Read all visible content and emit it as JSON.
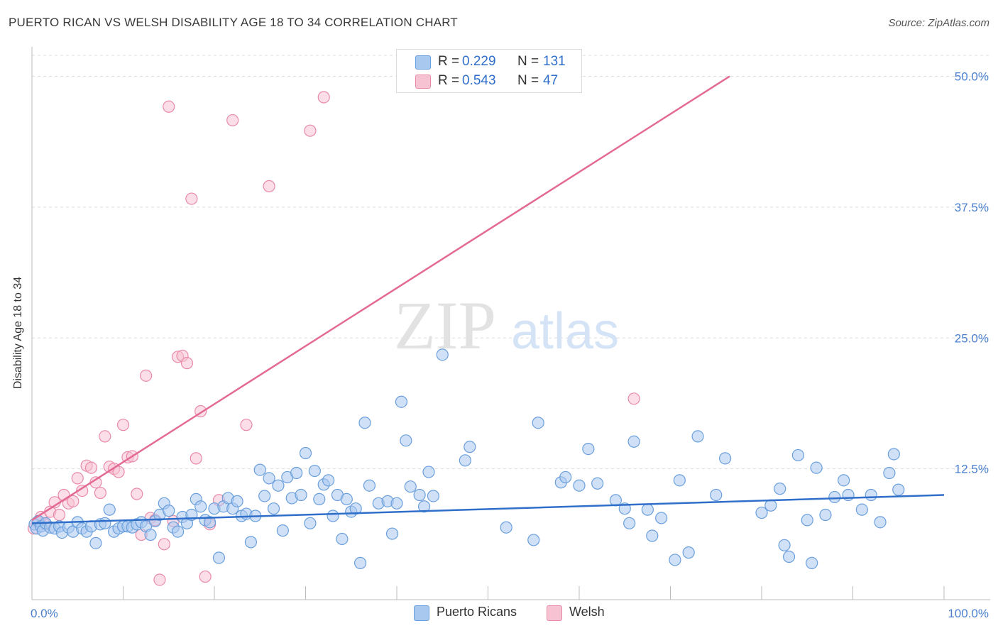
{
  "title": "PUERTO RICAN VS WELSH DISABILITY AGE 18 TO 34 CORRELATION CHART",
  "source": "Source: ZipAtlas.com",
  "watermark": {
    "zip": "ZIP",
    "atlas": "atlas"
  },
  "legend": {
    "rows": [
      {
        "r_label": "R =",
        "r_value": "0.229",
        "n_label": "N =",
        "n_value": "131"
      },
      {
        "r_label": "R =",
        "r_value": "0.543",
        "n_label": "N =",
        "n_value": "47"
      }
    ],
    "bottom": [
      "Puerto Ricans",
      "Welsh"
    ]
  },
  "colors": {
    "blue_fill": "#a9c8f0",
    "blue_stroke": "#6a9fdc",
    "blue_line": "#2f6fca",
    "pink_fill": "#f7c3d3",
    "pink_stroke": "#e98aa8",
    "pink_line": "#e36a94",
    "grid": "#dddddd",
    "axis_text": "#4a7fcf"
  },
  "chart_data": {
    "type": "scatter",
    "xlabel": "",
    "ylabel": "Disability Age 18 to 34",
    "xlim": [
      0,
      100
    ],
    "ylim": [
      0,
      52
    ],
    "x_tick_labels": [
      "0.0%",
      "100.0%"
    ],
    "y_ticks": [
      12.5,
      25.0,
      37.5,
      50.0
    ],
    "y_tick_labels": [
      "12.5%",
      "25.0%",
      "37.5%",
      "50.0%"
    ],
    "grid": true,
    "legend_position": "top-center",
    "series": [
      {
        "name": "Puerto Ricans",
        "color": "#a9c8f0",
        "trend": {
          "x": [
            0,
            100
          ],
          "y": [
            7.3,
            10.0
          ]
        },
        "points": [
          [
            0.3,
            7.2
          ],
          [
            0.5,
            6.8
          ],
          [
            0.7,
            7.5
          ],
          [
            1.0,
            7.0
          ],
          [
            1.2,
            6.6
          ],
          [
            1.5,
            7.3
          ],
          [
            2.0,
            6.9
          ],
          [
            2.5,
            6.8
          ],
          [
            3.0,
            7.0
          ],
          [
            3.3,
            6.4
          ],
          [
            4.0,
            6.9
          ],
          [
            4.5,
            6.5
          ],
          [
            5.0,
            7.4
          ],
          [
            5.5,
            6.8
          ],
          [
            6.0,
            6.5
          ],
          [
            6.5,
            7.0
          ],
          [
            7.0,
            5.4
          ],
          [
            7.5,
            7.2
          ],
          [
            8.0,
            7.3
          ],
          [
            8.5,
            8.6
          ],
          [
            9.0,
            6.5
          ],
          [
            9.5,
            6.8
          ],
          [
            10.0,
            7.0
          ],
          [
            10.5,
            7.0
          ],
          [
            11.0,
            6.9
          ],
          [
            11.5,
            7.2
          ],
          [
            12.0,
            7.4
          ],
          [
            12.5,
            7.0
          ],
          [
            13.0,
            6.2
          ],
          [
            13.5,
            7.5
          ],
          [
            14.0,
            8.1
          ],
          [
            14.5,
            9.2
          ],
          [
            15.0,
            8.5
          ],
          [
            15.5,
            6.9
          ],
          [
            16.0,
            6.5
          ],
          [
            16.5,
            7.9
          ],
          [
            17.0,
            7.3
          ],
          [
            17.5,
            8.1
          ],
          [
            18.0,
            9.6
          ],
          [
            18.5,
            8.9
          ],
          [
            19.0,
            7.6
          ],
          [
            19.5,
            7.4
          ],
          [
            20.0,
            8.7
          ],
          [
            20.5,
            4.0
          ],
          [
            21.0,
            8.9
          ],
          [
            21.5,
            9.7
          ],
          [
            22.0,
            8.7
          ],
          [
            22.5,
            9.4
          ],
          [
            23.0,
            8.0
          ],
          [
            23.5,
            8.2
          ],
          [
            24.0,
            5.5
          ],
          [
            24.5,
            8.0
          ],
          [
            25.0,
            12.4
          ],
          [
            25.5,
            9.9
          ],
          [
            26.0,
            11.6
          ],
          [
            26.5,
            8.7
          ],
          [
            27.0,
            10.9
          ],
          [
            27.5,
            6.6
          ],
          [
            28.0,
            11.7
          ],
          [
            28.5,
            9.7
          ],
          [
            29.0,
            12.1
          ],
          [
            29.5,
            10.0
          ],
          [
            30.0,
            14.0
          ],
          [
            30.5,
            7.3
          ],
          [
            31.0,
            12.3
          ],
          [
            31.5,
            9.6
          ],
          [
            32.0,
            11.0
          ],
          [
            32.5,
            11.4
          ],
          [
            33.0,
            8.0
          ],
          [
            33.5,
            10.0
          ],
          [
            34.0,
            5.8
          ],
          [
            34.5,
            9.6
          ],
          [
            35.0,
            8.4
          ],
          [
            35.5,
            8.7
          ],
          [
            36.0,
            3.5
          ],
          [
            36.5,
            16.9
          ],
          [
            37.0,
            10.9
          ],
          [
            38.0,
            9.2
          ],
          [
            39.0,
            9.4
          ],
          [
            39.5,
            6.3
          ],
          [
            40.0,
            9.2
          ],
          [
            40.5,
            18.9
          ],
          [
            41.0,
            15.2
          ],
          [
            41.5,
            10.8
          ],
          [
            42.5,
            10.0
          ],
          [
            43.0,
            8.9
          ],
          [
            43.5,
            12.2
          ],
          [
            44.0,
            9.9
          ],
          [
            45.0,
            23.4
          ],
          [
            47.5,
            13.3
          ],
          [
            48.0,
            14.6
          ],
          [
            52.0,
            6.9
          ],
          [
            55.0,
            5.7
          ],
          [
            55.5,
            16.9
          ],
          [
            58.0,
            11.2
          ],
          [
            58.5,
            11.7
          ],
          [
            60.0,
            10.9
          ],
          [
            61.0,
            14.4
          ],
          [
            62.0,
            11.1
          ],
          [
            64.0,
            9.5
          ],
          [
            65.0,
            8.7
          ],
          [
            65.5,
            7.3
          ],
          [
            66.0,
            15.1
          ],
          [
            67.5,
            8.6
          ],
          [
            68.0,
            6.1
          ],
          [
            69.0,
            7.8
          ],
          [
            70.5,
            3.8
          ],
          [
            71.0,
            11.4
          ],
          [
            72.0,
            4.5
          ],
          [
            73.0,
            15.6
          ],
          [
            75.0,
            10.0
          ],
          [
            76.0,
            13.5
          ],
          [
            80.0,
            8.3
          ],
          [
            81.0,
            9.0
          ],
          [
            82.0,
            10.6
          ],
          [
            82.5,
            5.2
          ],
          [
            83.0,
            4.1
          ],
          [
            84.0,
            13.8
          ],
          [
            85.0,
            7.6
          ],
          [
            85.5,
            3.5
          ],
          [
            86.0,
            12.6
          ],
          [
            87.0,
            8.1
          ],
          [
            88.0,
            9.8
          ],
          [
            89.0,
            11.4
          ],
          [
            89.5,
            10.0
          ],
          [
            91.0,
            8.6
          ],
          [
            92.0,
            10.0
          ],
          [
            93.0,
            7.4
          ],
          [
            94.0,
            12.1
          ],
          [
            94.5,
            13.9
          ],
          [
            95.0,
            10.5
          ]
        ]
      },
      {
        "name": "Welsh",
        "color": "#f7c3d3",
        "trend": {
          "x": [
            0,
            76.5
          ],
          "y": [
            7.6,
            50.0
          ]
        },
        "points": [
          [
            0.2,
            6.8
          ],
          [
            0.6,
            7.4
          ],
          [
            1.0,
            7.9
          ],
          [
            1.5,
            7.2
          ],
          [
            2.0,
            8.4
          ],
          [
            2.5,
            9.3
          ],
          [
            3.0,
            8.1
          ],
          [
            3.5,
            10.0
          ],
          [
            4.0,
            9.2
          ],
          [
            4.5,
            9.4
          ],
          [
            5.0,
            11.6
          ],
          [
            5.5,
            10.4
          ],
          [
            6.0,
            12.8
          ],
          [
            6.5,
            12.6
          ],
          [
            7.0,
            11.2
          ],
          [
            7.5,
            10.2
          ],
          [
            8.0,
            15.6
          ],
          [
            8.5,
            12.7
          ],
          [
            9.0,
            12.5
          ],
          [
            9.5,
            12.2
          ],
          [
            10.0,
            16.7
          ],
          [
            10.5,
            13.6
          ],
          [
            11.0,
            13.7
          ],
          [
            11.5,
            10.1
          ],
          [
            12.0,
            6.2
          ],
          [
            12.5,
            21.4
          ],
          [
            13.0,
            7.8
          ],
          [
            13.5,
            7.6
          ],
          [
            14.0,
            1.9
          ],
          [
            14.5,
            5.3
          ],
          [
            15.0,
            47.1
          ],
          [
            15.5,
            7.5
          ],
          [
            16.0,
            23.2
          ],
          [
            16.5,
            23.3
          ],
          [
            17.0,
            22.6
          ],
          [
            17.5,
            38.3
          ],
          [
            18.0,
            13.5
          ],
          [
            18.5,
            18.0
          ],
          [
            19.0,
            2.2
          ],
          [
            19.5,
            7.2
          ],
          [
            20.5,
            9.5
          ],
          [
            22.0,
            45.8
          ],
          [
            23.5,
            16.7
          ],
          [
            26.0,
            39.5
          ],
          [
            30.5,
            44.8
          ],
          [
            32.0,
            48.0
          ],
          [
            66.0,
            19.2
          ]
        ]
      }
    ]
  }
}
